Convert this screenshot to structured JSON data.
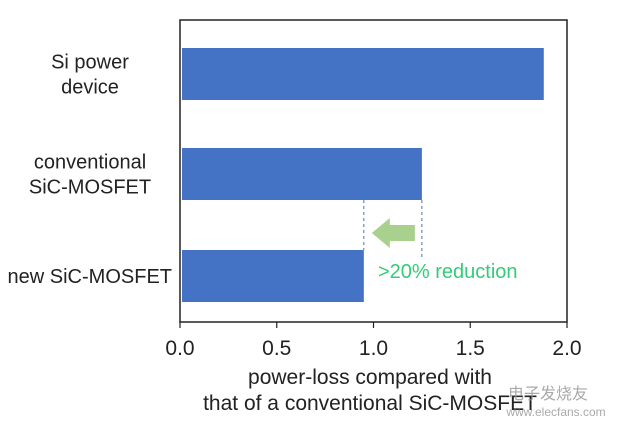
{
  "chart_data": {
    "type": "bar",
    "orientation": "horizontal",
    "categories": [
      [
        "Si power",
        "device"
      ],
      [
        "conventional",
        "SiC-MOSFET"
      ],
      [
        "new SiC-MOSFET"
      ]
    ],
    "values": [
      1.88,
      1.25,
      0.95
    ],
    "xlim": [
      0,
      2.0
    ],
    "xticks": [
      "0.0",
      "0.5",
      "1.0",
      "1.5",
      "2.0"
    ],
    "xlabel": [
      "power-loss compared with",
      "that of a conventional SiC-MOSFET"
    ],
    "grid": false,
    "bar_color": "#4472c4",
    "annotation": {
      "text": ">20% reduction",
      "color": "#33cc77",
      "arrow_color": "#a9d18e",
      "from_value": 1.25,
      "to_value": 0.95
    },
    "watermark": {
      "text": "电子发烧友",
      "url": "www.elecfans.com"
    }
  }
}
